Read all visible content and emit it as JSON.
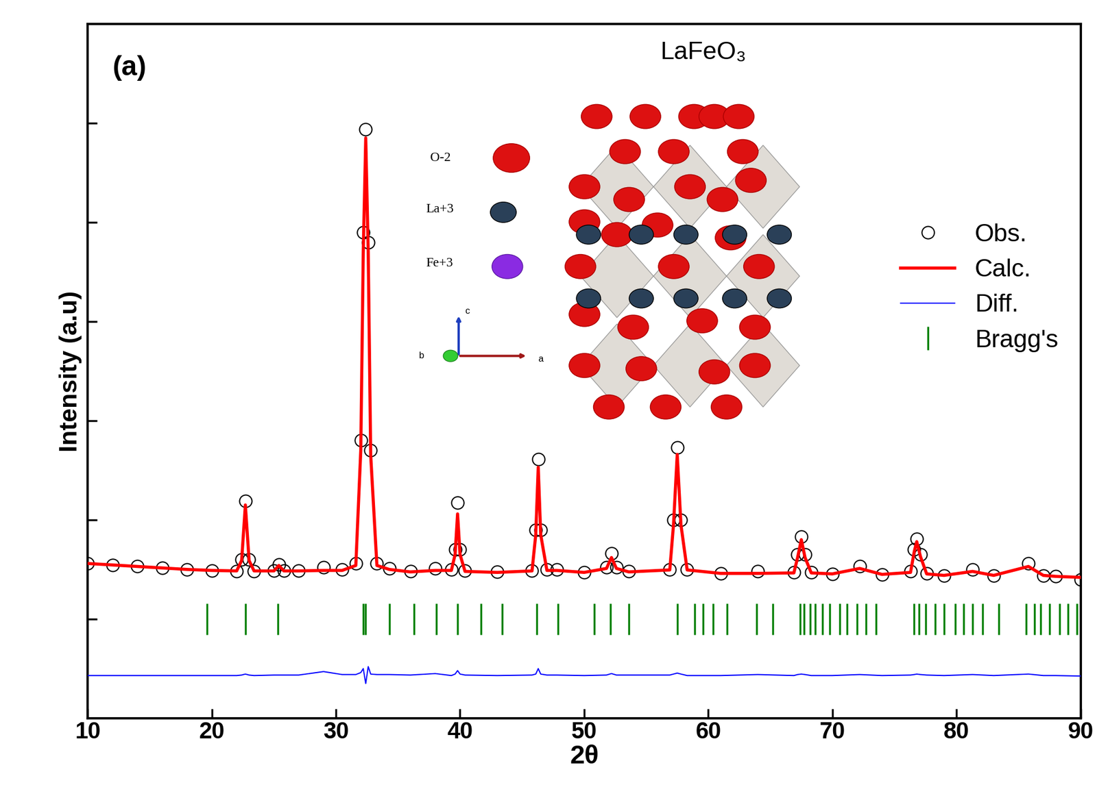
{
  "chart_data": {
    "type": "line",
    "title": "LaFeO₃",
    "panel_label": "(a)",
    "x_label": "2θ",
    "y_label": "Intensity (a.u)",
    "xlim": [
      10,
      90
    ],
    "ylim": [
      -1000,
      6000
    ],
    "xticks": [
      10,
      20,
      30,
      40,
      50,
      60,
      70,
      80,
      90
    ],
    "yticks": [
      0,
      1000,
      2000,
      3000,
      4000,
      5000
    ],
    "tick_labels": "x",
    "legend": "center right",
    "inset_labels": [
      "O-2",
      "La+3",
      "Fe+3"
    ],
    "inset_axes": [
      "c",
      "b",
      "a"
    ],
    "x": [
      10,
      12,
      14,
      16,
      18,
      20,
      22,
      22.4,
      22.7,
      23.0,
      23.4,
      25.0,
      25.4,
      25.8,
      27,
      29,
      30.5,
      31.6,
      32.0,
      32.2,
      32.4,
      32.6,
      32.8,
      33.3,
      34.3,
      36,
      38.0,
      39.3,
      39.6,
      39.8,
      40.0,
      40.4,
      43,
      45.8,
      46.1,
      46.3,
      46.5,
      47.0,
      47.8,
      50,
      51.8,
      52.2,
      52.6,
      53.6,
      56.9,
      57.2,
      57.5,
      57.8,
      58.3,
      61,
      64,
      66.9,
      67.2,
      67.5,
      67.8,
      68.3,
      70,
      72.2,
      74,
      76.3,
      76.6,
      76.8,
      77.1,
      77.6,
      79,
      81.3,
      83,
      85.8,
      87,
      88,
      90
    ],
    "series": [
      {
        "name": "Obs.",
        "type": "scatter",
        "marker": "o",
        "color": "#000000",
        "values": [
          560,
          545,
          530,
          515,
          500,
          490,
          485,
          600,
          1190,
          600,
          485,
          490,
          550,
          490,
          490,
          520,
          500,
          560,
          1800,
          3900,
          4940,
          3800,
          1700,
          560,
          510,
          480,
          510,
          500,
          700,
          1175,
          700,
          490,
          475,
          490,
          900,
          1610,
          900,
          500,
          500,
          470,
          520,
          660,
          520,
          480,
          500,
          1000,
          1730,
          1000,
          500,
          460,
          480,
          470,
          650,
          830,
          650,
          470,
          455,
          530,
          450,
          480,
          700,
          810,
          650,
          460,
          440,
          500,
          440,
          560,
          440,
          430,
          400
        ]
      },
      {
        "name": "Calc.",
        "type": "line",
        "line_style": "solid",
        "color": "#ff0000",
        "values": [
          560,
          545,
          530,
          515,
          500,
          490,
          485,
          590,
          1150,
          590,
          485,
          485,
          540,
          485,
          485,
          490,
          490,
          540,
          1700,
          3700,
          4850,
          3700,
          1650,
          540,
          500,
          475,
          490,
          490,
          650,
          1060,
          650,
          480,
          470,
          485,
          850,
          1530,
          850,
          490,
          490,
          470,
          510,
          620,
          510,
          475,
          495,
          950,
          1660,
          950,
          495,
          460,
          460,
          465,
          620,
          800,
          620,
          465,
          455,
          510,
          450,
          470,
          680,
          780,
          630,
          455,
          440,
          480,
          440,
          530,
          440,
          430,
          420
        ]
      },
      {
        "name": "Diff.",
        "type": "line",
        "line_style": "solid",
        "color": "#0000ff",
        "values": [
          -570,
          -570,
          -570,
          -570,
          -570,
          -570,
          -570,
          -565,
          -555,
          -565,
          -570,
          -565,
          -565,
          -565,
          -565,
          -530,
          -560,
          -560,
          -540,
          -500,
          -650,
          -480,
          -555,
          -560,
          -560,
          -565,
          -550,
          -570,
          -555,
          -520,
          -555,
          -565,
          -570,
          -565,
          -555,
          -500,
          -555,
          -565,
          -565,
          -570,
          -565,
          -550,
          -565,
          -565,
          -565,
          -555,
          -545,
          -555,
          -570,
          -570,
          -560,
          -570,
          -560,
          -555,
          -560,
          -570,
          -570,
          -560,
          -570,
          -565,
          -560,
          -555,
          -560,
          -565,
          -570,
          -560,
          -570,
          -555,
          -570,
          -570,
          -575
        ]
      },
      {
        "name": "Bragg's",
        "type": "ticks",
        "marker": "|",
        "color": "#008000",
        "x": [
          19.6,
          22.7,
          25.3,
          32.2,
          32.4,
          34.3,
          36.3,
          38.1,
          39.8,
          41.7,
          43.4,
          46.2,
          47.9,
          50.8,
          52.1,
          53.6,
          57.5,
          58.9,
          59.6,
          60.4,
          61.5,
          63.9,
          65.2,
          67.4,
          67.7,
          68.2,
          68.6,
          69.2,
          69.8,
          70.6,
          71.2,
          72.0,
          72.7,
          73.5,
          76.6,
          77.0,
          77.5,
          78.3,
          79.0,
          79.9,
          80.6,
          81.3,
          82.1,
          83.4,
          85.6,
          86.3,
          86.8,
          87.5,
          88.3,
          89.0,
          89.7
        ],
        "values": [
          0,
          0,
          0,
          0,
          0,
          0,
          0,
          0,
          0,
          0,
          0,
          0,
          0,
          0,
          0,
          0,
          0,
          0,
          0,
          0,
          0,
          0,
          0,
          0,
          0,
          0,
          0,
          0,
          0,
          0,
          0,
          0,
          0,
          0,
          0,
          0,
          0,
          0,
          0,
          0,
          0,
          0,
          0,
          0,
          0,
          0,
          0,
          0,
          0,
          0,
          0
        ]
      }
    ]
  }
}
